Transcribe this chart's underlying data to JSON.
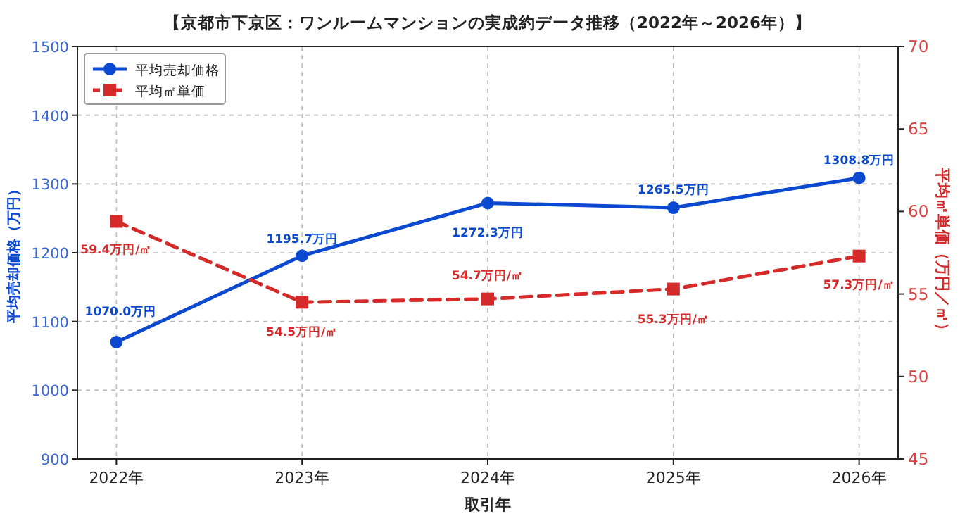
{
  "chart_data": {
    "type": "line",
    "title": "【京都市下京区：ワンルームマンションの実成約データ推移（2022年～2026年）】",
    "xlabel": "取引年",
    "ylabel": "平均売却価格（万円）",
    "y2label": "平均㎡単価（万円／㎡）",
    "categories": [
      "2022年",
      "2023年",
      "2024年",
      "2025年",
      "2026年"
    ],
    "series": [
      {
        "name": "平均売却価格",
        "color": "#0b4ad0",
        "values": [
          1070.0,
          1195.7,
          1272.3,
          1265.5,
          1308.8
        ],
        "marker": "circle",
        "line_style": "solid",
        "value_labels": [
          "1070.0万円",
          "1195.7万円",
          "1272.3万円",
          "1265.5万円",
          "1308.8万円"
        ]
      },
      {
        "name": "平均㎡単価",
        "color": "#d42a2a",
        "values": [
          59.4,
          54.5,
          54.7,
          55.3,
          57.3
        ],
        "axis": "y2",
        "marker": "square",
        "line_style": "dashed",
        "value_labels": [
          "59.4万円/㎡",
          "54.5万円/㎡",
          "54.7万円/㎡",
          "55.3万円/㎡",
          "57.3万円/㎡"
        ]
      }
    ],
    "ylim": [
      900,
      1500
    ],
    "yticks": [
      900,
      1000,
      1100,
      1200,
      1300,
      1400,
      1500
    ],
    "y2lim": [
      45,
      70
    ],
    "y2ticks": [
      45,
      50,
      55,
      60,
      65,
      70
    ],
    "grid": true,
    "legend": "top left"
  }
}
